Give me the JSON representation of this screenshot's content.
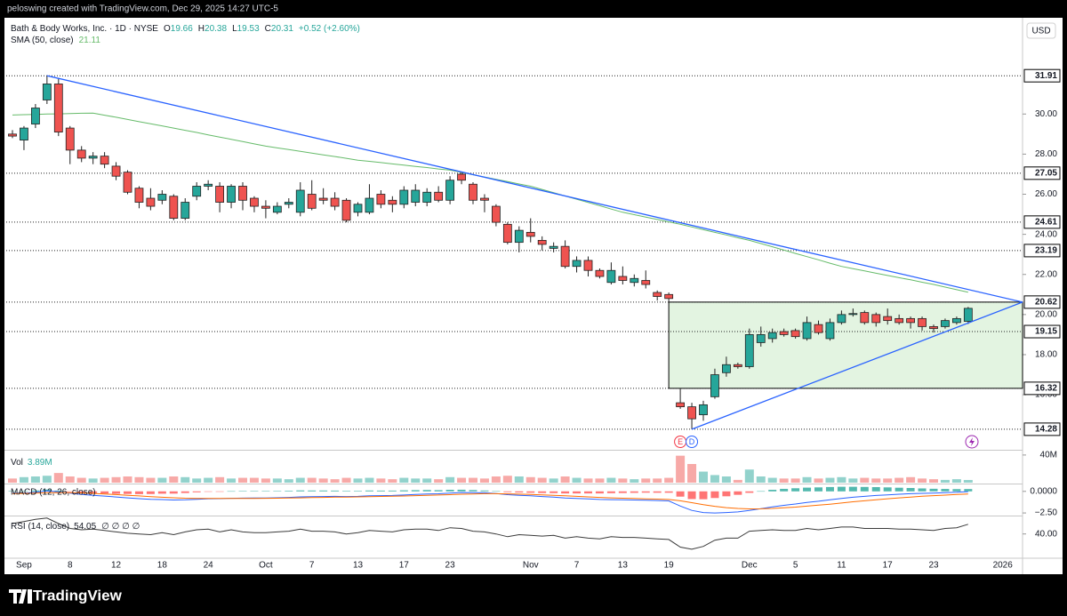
{
  "header": {
    "attribution": "peloswing created with TradingView.com, Dec 29, 2025 14:27 UTC-5",
    "currency": "USD"
  },
  "footer": {
    "brand": "TradingView"
  },
  "chart_data": [
    {
      "type": "candlestick",
      "title": "Bath & Body Works, Inc. · 1D · NYSE",
      "ohlc_labels": [
        "O",
        "H",
        "L",
        "C"
      ],
      "change": "+0.52 (+2.60%)",
      "categories": [
        null,
        "Sep",
        null,
        null,
        null,
        "8",
        null,
        null,
        null,
        "12",
        null,
        null,
        null,
        "18",
        null,
        null,
        null,
        "24",
        null,
        null,
        null,
        null,
        "Oct",
        null,
        null,
        null,
        "7",
        null,
        null,
        null,
        "13",
        null,
        null,
        null,
        "17",
        null,
        null,
        null,
        "23",
        null,
        null,
        null,
        null,
        null,
        null,
        "Nov",
        null,
        null,
        null,
        "7",
        null,
        null,
        null,
        "13",
        null,
        null,
        null,
        "19",
        null,
        null,
        null,
        null,
        null,
        null,
        "Dec",
        null,
        null,
        null,
        "5",
        null,
        null,
        null,
        "11",
        null,
        null,
        null,
        "17",
        null,
        null,
        null,
        "23",
        null,
        null,
        null,
        null,
        null,
        "2026"
      ],
      "open": [
        29.0,
        28.7,
        29.5,
        30.7,
        31.5,
        29.3,
        28.2,
        27.8,
        27.9,
        27.4,
        27.1,
        26.3,
        25.8,
        25.7,
        25.9,
        24.8,
        25.9,
        26.4,
        26.4,
        25.6,
        26.4,
        25.8,
        25.4,
        25.1,
        25.5,
        25.1,
        26.0,
        25.8,
        25.8,
        25.7,
        25.1,
        25.1,
        26.0,
        25.7,
        25.5,
        25.6,
        25.6,
        26.1,
        25.7,
        27.0,
        26.5,
        25.8,
        25.4,
        24.5,
        23.6,
        24.1,
        23.7,
        23.3,
        23.4,
        22.4,
        22.7,
        22.2,
        21.6,
        21.9,
        21.6,
        21.7,
        21.1,
        21.0,
        15.6,
        15.4,
        15.0,
        15.9,
        17.1,
        17.5,
        17.4,
        18.6,
        18.8,
        19.15,
        19.2,
        18.8,
        19.5,
        18.8,
        19.6,
        20.0,
        20.1,
        20.0,
        19.9,
        19.8,
        19.8,
        19.8,
        19.4,
        19.4,
        19.6,
        19.66,
        null,
        null,
        null
      ],
      "high": [
        29.2,
        29.4,
        30.5,
        31.91,
        31.8,
        29.4,
        28.4,
        28.1,
        28.1,
        27.6,
        27.2,
        26.4,
        26.3,
        26.2,
        26.0,
        25.8,
        26.6,
        26.7,
        26.6,
        26.5,
        26.6,
        25.9,
        25.7,
        25.6,
        25.8,
        26.6,
        26.7,
        26.3,
        26.1,
        25.8,
        25.6,
        26.5,
        26.2,
        25.9,
        26.4,
        26.5,
        26.3,
        26.4,
        26.9,
        27.1,
        26.6,
        26.0,
        25.5,
        24.6,
        24.4,
        24.8,
        23.9,
        23.6,
        23.7,
        22.9,
        22.9,
        22.3,
        22.6,
        22.4,
        22.0,
        22.2,
        21.2,
        21.1,
        16.3,
        15.6,
        15.7,
        17.3,
        17.9,
        17.6,
        19.3,
        19.4,
        19.3,
        19.3,
        19.3,
        19.9,
        19.7,
        19.8,
        20.2,
        20.3,
        20.2,
        20.1,
        20.3,
        20.0,
        19.9,
        19.9,
        19.5,
        19.8,
        19.9,
        20.38,
        null,
        null,
        null
      ],
      "low": [
        28.8,
        28.2,
        29.3,
        30.5,
        28.9,
        27.5,
        27.6,
        27.5,
        27.3,
        26.7,
        26.0,
        25.3,
        25.2,
        25.5,
        24.7,
        24.7,
        25.7,
        26.2,
        25.1,
        25.3,
        25.2,
        25.1,
        24.8,
        25.0,
        25.3,
        24.9,
        25.2,
        25.5,
        25.2,
        24.6,
        24.9,
        25.0,
        25.3,
        25.1,
        25.3,
        25.4,
        25.4,
        25.6,
        25.5,
        26.5,
        25.5,
        25.1,
        24.4,
        23.5,
        23.1,
        23.6,
        23.2,
        23.1,
        22.3,
        22.1,
        21.9,
        21.8,
        21.5,
        21.5,
        21.4,
        21.3,
        20.7,
        20.6,
        15.3,
        14.28,
        14.7,
        15.8,
        16.9,
        17.3,
        17.3,
        18.4,
        18.6,
        18.9,
        18.8,
        18.7,
        19.0,
        18.7,
        19.5,
        19.9,
        19.5,
        19.4,
        19.5,
        19.5,
        19.3,
        19.2,
        19.1,
        19.3,
        19.5,
        19.53,
        null,
        null,
        null
      ],
      "close": [
        28.9,
        29.3,
        30.3,
        31.5,
        29.1,
        28.2,
        27.8,
        27.9,
        27.5,
        26.9,
        26.1,
        25.6,
        25.4,
        26.0,
        24.8,
        25.6,
        26.4,
        26.5,
        25.6,
        26.4,
        25.7,
        25.4,
        25.3,
        25.4,
        25.6,
        26.2,
        25.3,
        25.7,
        25.4,
        24.7,
        25.5,
        25.8,
        25.5,
        25.5,
        26.2,
        26.2,
        26.1,
        25.7,
        26.7,
        26.7,
        25.7,
        25.7,
        24.6,
        23.6,
        24.2,
        23.9,
        23.5,
        23.4,
        22.4,
        22.7,
        22.2,
        21.9,
        22.2,
        21.7,
        21.8,
        21.5,
        20.9,
        20.8,
        15.4,
        14.8,
        15.5,
        17.0,
        17.5,
        17.4,
        19.0,
        19.0,
        19.1,
        19.0,
        18.9,
        19.6,
        19.1,
        19.6,
        20.0,
        20.05,
        19.6,
        19.6,
        19.7,
        19.6,
        19.6,
        19.4,
        19.3,
        19.7,
        19.8,
        20.31,
        null,
        null,
        null
      ],
      "up_color": "#26a69a",
      "down_color": "#ef5350",
      "series": [
        {
          "name": "SMA (50, close)",
          "color": "#66bb6a",
          "values": [
            29.95,
            29.97,
            29.98,
            30.0,
            30.01,
            30.02,
            30.04,
            30.05,
            29.94,
            29.84,
            29.73,
            29.62,
            29.51,
            29.41,
            29.3,
            29.19,
            29.08,
            28.96,
            28.85,
            28.74,
            28.63,
            28.51,
            28.4,
            28.31,
            28.23,
            28.14,
            28.05,
            27.96,
            27.88,
            27.79,
            27.7,
            27.64,
            27.58,
            27.51,
            27.45,
            27.39,
            27.33,
            27.26,
            27.2,
            27.09,
            26.97,
            26.86,
            26.74,
            26.63,
            26.51,
            26.4,
            26.24,
            26.08,
            25.91,
            25.75,
            25.59,
            25.43,
            25.26,
            25.1,
            24.98,
            24.86,
            24.74,
            24.62,
            24.5,
            24.37,
            24.23,
            24.1,
            23.97,
            23.83,
            23.7,
            23.54,
            23.38,
            23.21,
            23.05,
            22.89,
            22.73,
            22.56,
            22.4,
            22.29,
            22.18,
            22.06,
            21.95,
            21.84,
            21.73,
            21.61,
            21.5,
            21.37,
            21.24,
            21.11,
            null,
            null,
            null
          ]
        }
      ],
      "ylim": [
        13.3,
        34.8
      ],
      "yticks": [
        {
          "value": 16,
          "label": "16.00"
        },
        {
          "value": 18,
          "label": "18.00"
        },
        {
          "value": 20,
          "label": "20.00"
        },
        {
          "value": 22,
          "label": "22.00"
        },
        {
          "value": 24,
          "label": "24.00"
        },
        {
          "value": 26,
          "label": "26.00"
        },
        {
          "value": 28,
          "label": "28.00"
        },
        {
          "value": 30,
          "label": "30.00"
        }
      ],
      "levels": [
        31.91,
        27.05,
        24.61,
        23.19,
        20.62,
        19.15,
        16.32,
        14.28
      ],
      "trendline_color": "#2962ff",
      "zone_color": "#e3f4e1",
      "events": [
        "E",
        "D"
      ]
    },
    {
      "type": "bar",
      "title": "Vol",
      "last_label": "3.89M",
      "values": [
        6,
        8,
        9,
        10,
        14,
        9,
        7,
        6,
        7,
        8,
        9,
        8,
        7,
        7,
        9,
        8,
        6,
        7,
        8,
        6,
        7,
        7,
        6,
        6,
        5,
        7,
        7,
        6,
        5,
        7,
        6,
        7,
        6,
        5,
        7,
        6,
        6,
        5,
        8,
        7,
        7,
        6,
        9,
        10,
        9,
        8,
        7,
        6,
        9,
        7,
        6,
        6,
        7,
        6,
        5,
        6,
        6,
        7,
        39,
        27,
        16,
        11,
        9,
        4,
        19,
        9,
        7,
        6,
        6,
        8,
        6,
        7,
        8,
        6,
        7,
        6,
        6,
        7,
        8,
        6,
        5,
        4,
        5,
        3.89,
        null,
        null,
        null
      ],
      "ylim": [
        0,
        45
      ],
      "yticks": [
        {
          "value": 40,
          "label": "40M"
        }
      ]
    },
    {
      "type": "macd",
      "title": "MACD (12, 26, close)",
      "histogram": [
        0.05,
        0.04,
        0.11,
        0.21,
        0.09,
        -0.05,
        -0.16,
        -0.21,
        -0.25,
        -0.28,
        -0.3,
        -0.32,
        -0.31,
        -0.27,
        -0.26,
        -0.19,
        -0.11,
        -0.04,
        -0.02,
        0.02,
        0.04,
        0.04,
        0.04,
        0.05,
        0.07,
        0.11,
        0.1,
        0.1,
        0.09,
        0.06,
        0.06,
        0.1,
        0.09,
        0.09,
        0.12,
        0.14,
        0.16,
        0.14,
        0.18,
        0.19,
        0.15,
        0.1,
        0.02,
        -0.09,
        -0.13,
        -0.16,
        -0.19,
        -0.2,
        -0.24,
        -0.24,
        -0.24,
        -0.24,
        -0.21,
        -0.19,
        -0.17,
        -0.15,
        -0.16,
        -0.16,
        -0.61,
        -0.89,
        -0.91,
        -0.77,
        -0.57,
        -0.4,
        -0.17,
        0.02,
        0.18,
        0.29,
        0.36,
        0.43,
        0.46,
        0.5,
        0.53,
        0.53,
        0.51,
        0.49,
        0.46,
        0.42,
        0.39,
        0.34,
        0.3,
        0.28,
        0.26,
        0.27,
        null,
        null,
        null
      ],
      "up_color": "#26a69a",
      "down_color": "#ff5252",
      "series": [
        {
          "color": "#2962ff",
          "values": [
            -0.2,
            -0.2,
            -0.1,
            0.05,
            -0.05,
            -0.2,
            -0.35,
            -0.45,
            -0.55,
            -0.65,
            -0.75,
            -0.85,
            -0.92,
            -0.95,
            -1.0,
            -0.98,
            -0.92,
            -0.86,
            -0.85,
            -0.8,
            -0.78,
            -0.77,
            -0.76,
            -0.74,
            -0.7,
            -0.64,
            -0.62,
            -0.6,
            -0.58,
            -0.6,
            -0.58,
            -0.52,
            -0.5,
            -0.48,
            -0.42,
            -0.36,
            -0.3,
            -0.28,
            -0.2,
            -0.14,
            -0.15,
            -0.17,
            -0.25,
            -0.38,
            -0.45,
            -0.52,
            -0.6,
            -0.66,
            -0.76,
            -0.82,
            -0.88,
            -0.94,
            -0.96,
            -0.98,
            -1.0,
            -1.02,
            -1.06,
            -1.1,
            -1.7,
            -2.2,
            -2.45,
            -2.5,
            -2.45,
            -2.38,
            -2.2,
            -2.0,
            -1.8,
            -1.62,
            -1.46,
            -1.28,
            -1.14,
            -0.98,
            -0.82,
            -0.68,
            -0.58,
            -0.48,
            -0.4,
            -0.33,
            -0.27,
            -0.23,
            -0.2,
            -0.15,
            -0.1,
            -0.03,
            null,
            null,
            null
          ]
        },
        {
          "color": "#ff6d00",
          "values": [
            -0.25,
            -0.24,
            -0.21,
            -0.16,
            -0.14,
            -0.15,
            -0.19,
            -0.24,
            -0.3,
            -0.37,
            -0.45,
            -0.53,
            -0.61,
            -0.68,
            -0.74,
            -0.79,
            -0.81,
            -0.82,
            -0.83,
            -0.82,
            -0.82,
            -0.81,
            -0.8,
            -0.79,
            -0.77,
            -0.75,
            -0.72,
            -0.7,
            -0.67,
            -0.66,
            -0.64,
            -0.62,
            -0.59,
            -0.57,
            -0.54,
            -0.5,
            -0.46,
            -0.42,
            -0.38,
            -0.33,
            -0.3,
            -0.27,
            -0.27,
            -0.29,
            -0.32,
            -0.36,
            -0.41,
            -0.46,
            -0.52,
            -0.58,
            -0.64,
            -0.7,
            -0.75,
            -0.79,
            -0.83,
            -0.87,
            -0.9,
            -0.94,
            -1.09,
            -1.31,
            -1.54,
            -1.73,
            -1.88,
            -1.98,
            -2.03,
            -2.02,
            -1.98,
            -1.91,
            -1.82,
            -1.71,
            -1.6,
            -1.48,
            -1.35,
            -1.21,
            -1.09,
            -0.97,
            -0.86,
            -0.75,
            -0.66,
            -0.57,
            -0.5,
            -0.43,
            -0.36,
            -0.3,
            null,
            null,
            null
          ]
        }
      ],
      "ylim": [
        -2.8,
        0.8
      ],
      "yticks": [
        {
          "value": 0,
          "label": "0.0000"
        },
        {
          "value": -2.5,
          "label": "−2.50"
        }
      ]
    },
    {
      "type": "line",
      "title": "RSI (14, close)",
      "icons": "∅ ∅ ∅ ∅",
      "series": [
        {
          "color": "#3a3a3a",
          "values": [
            55,
            58,
            61,
            63,
            55,
            48,
            46,
            47,
            45,
            43,
            41,
            40,
            39,
            42,
            39,
            43,
            46,
            47,
            43,
            46,
            43,
            42,
            42,
            43,
            44,
            47,
            44,
            44,
            43,
            40,
            42,
            45,
            44,
            43,
            46,
            47,
            47,
            45,
            49,
            48,
            44,
            43,
            40,
            36,
            39,
            38,
            37,
            38,
            34,
            36,
            34,
            33,
            36,
            35,
            35,
            34,
            33,
            32,
            21,
            18,
            22,
            31,
            34,
            34,
            44,
            45,
            46,
            45,
            45,
            48,
            46,
            48,
            50,
            50,
            48,
            48,
            48,
            47,
            47,
            46,
            45,
            48,
            49,
            54.05,
            null,
            null,
            null
          ]
        }
      ],
      "ylim": [
        5,
        64
      ],
      "yticks": [
        {
          "value": 40,
          "label": "40.00"
        }
      ]
    }
  ]
}
